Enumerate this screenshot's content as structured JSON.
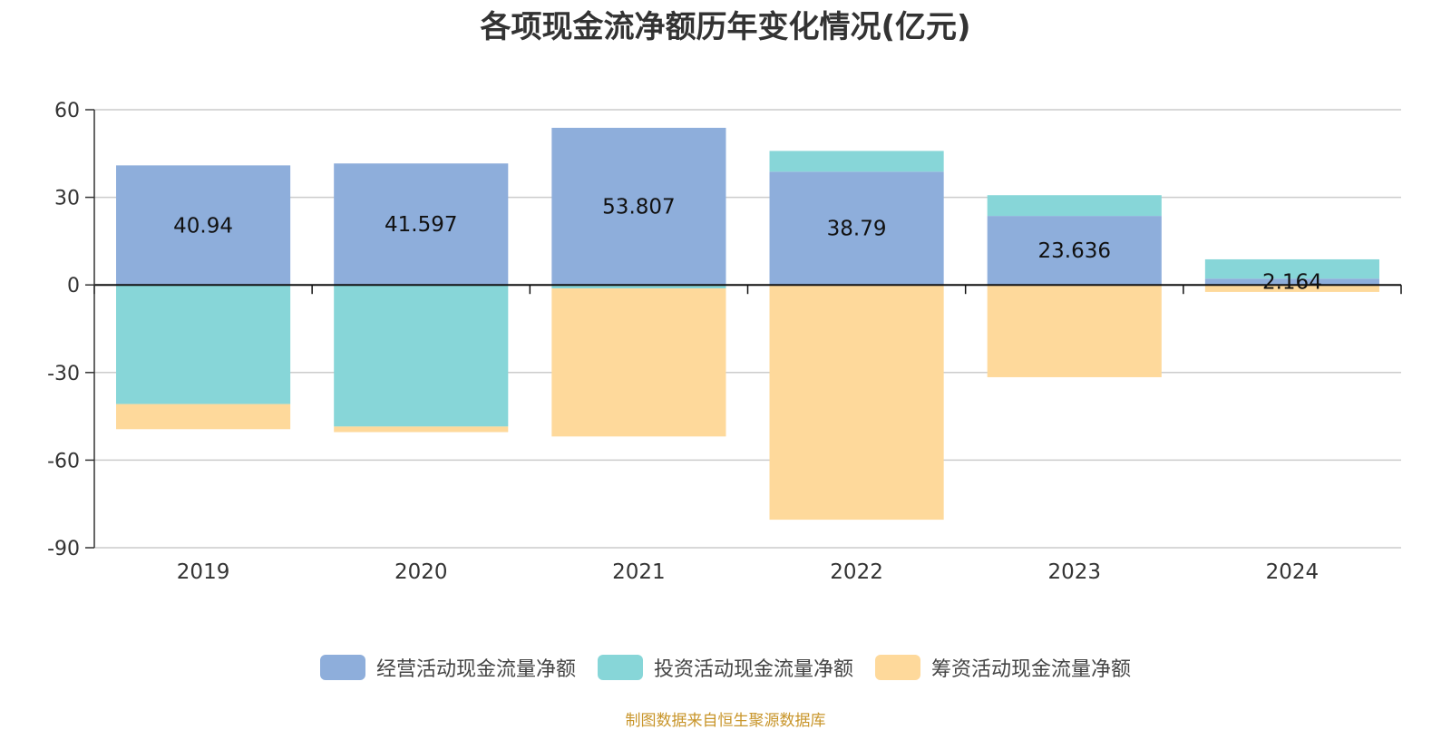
{
  "chart_data": {
    "type": "bar",
    "stacked": true,
    "title": "各项现金流净额历年变化情况(亿元)",
    "categories": [
      "2019",
      "2020",
      "2021",
      "2022",
      "2023",
      "2024"
    ],
    "ylim": [
      -90,
      60
    ],
    "yticks": [
      60,
      30,
      0,
      -30,
      -60,
      -90
    ],
    "grid": true,
    "legend_position": "bottom",
    "series": [
      {
        "name": "经营活动现金流量净额",
        "color": "#8eaedb",
        "values": [
          40.94,
          41.597,
          53.807,
          38.79,
          23.636,
          2.164
        ],
        "labels": [
          "40.94",
          "41.597",
          "53.807",
          "38.79",
          "23.636",
          "2.164"
        ]
      },
      {
        "name": "投资活动现金流量净额",
        "color": "#87d6d8",
        "values": [
          -40.8,
          -48.5,
          -1.2,
          7.1,
          7.1,
          6.6
        ]
      },
      {
        "name": "筹资活动现金流量净额",
        "color": "#fed99b",
        "values": [
          -8.6,
          -1.9,
          -50.7,
          -80.4,
          -31.6,
          -2.4
        ]
      }
    ]
  },
  "source_note": "制图数据来自恒生聚源数据库"
}
